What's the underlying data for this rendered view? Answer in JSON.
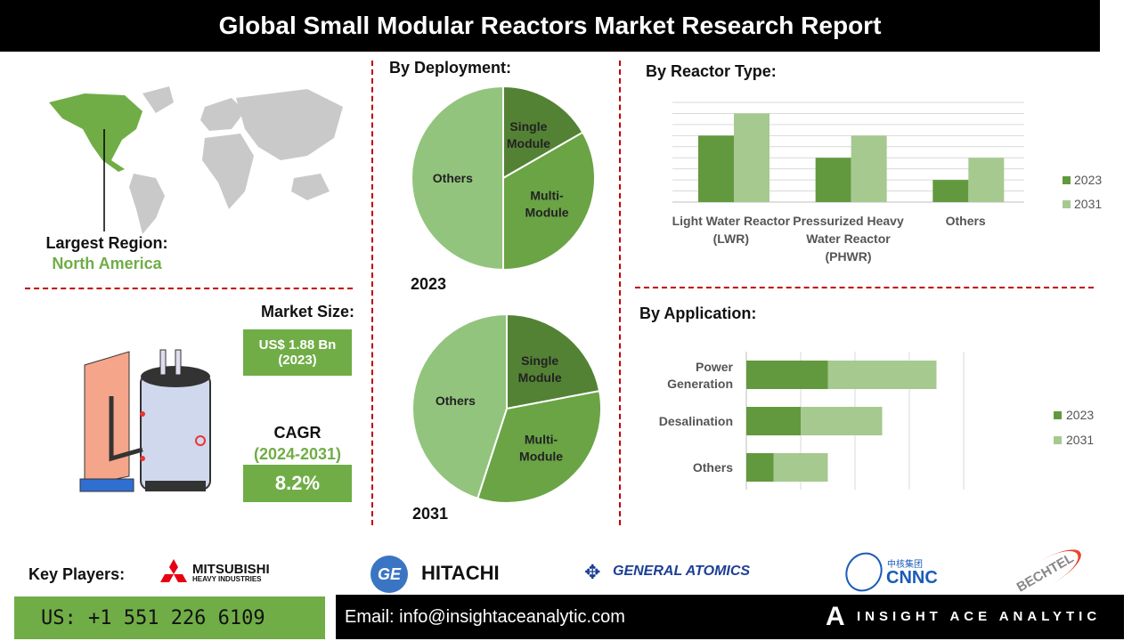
{
  "title": "Global Small Modular Reactors Market Research Report",
  "region": {
    "label": "Largest Region:",
    "value": "North America"
  },
  "market_size": {
    "label": "Market Size:",
    "value": "US$ 1.88 Bn",
    "year": "(2023)"
  },
  "cagr": {
    "label": "CAGR",
    "period": "(2024-2031)",
    "value": "8.2%"
  },
  "colors": {
    "accent": "#70ad47",
    "dark_green": "#548235",
    "mid_green": "#6aa445",
    "light_green": "#93c47d",
    "divider": "#c00000",
    "bar_2023": "#62993e",
    "bar_2031": "#a6c990"
  },
  "chart_data": [
    {
      "type": "pie",
      "title": "By Deployment:",
      "label": "2023",
      "categories": [
        "Single Module",
        "Multi-Module",
        "Others"
      ],
      "values": [
        16.7,
        33.3,
        50
      ]
    },
    {
      "type": "pie",
      "label": "2031",
      "categories": [
        "Single Module",
        "Multi-Module",
        "Others"
      ],
      "values": [
        22,
        33,
        45
      ]
    },
    {
      "type": "bar",
      "title": "By  Reactor Type:",
      "categories": [
        "Light Water Reactor (LWR)",
        "Pressurized Heavy Water Reactor (PHWR)",
        "Others"
      ],
      "series": [
        {
          "name": "2023",
          "values": [
            6,
            4,
            2
          ]
        },
        {
          "name": "2031",
          "values": [
            8,
            6,
            4
          ]
        }
      ],
      "ylim": [
        0,
        9
      ],
      "grid": true,
      "legend": "right"
    },
    {
      "type": "bar",
      "orientation": "horizontal",
      "stacked": true,
      "title": "By Application:",
      "categories": [
        "Power Generation",
        "Desalination",
        "Others"
      ],
      "series": [
        {
          "name": "2023",
          "values": [
            1.5,
            1.0,
            0.5
          ]
        },
        {
          "name": "2031",
          "values": [
            2.0,
            1.5,
            1.0
          ]
        }
      ],
      "xlim": [
        0,
        4
      ],
      "grid": true,
      "legend": "right"
    }
  ],
  "footer": {
    "key_players_label": "Key Players:",
    "players": [
      "MITSUBISHI",
      "HEAVY INDUSTRIES",
      "HITACHI",
      "GENERAL ATOMICS",
      "中核集团",
      "CNNC",
      "BECHTEL"
    ],
    "phone": "US: +1 551 226 6109",
    "email": "Email: info@insightaceanalytic.com",
    "brand": "INSIGHT ACE ANALYTIC"
  }
}
